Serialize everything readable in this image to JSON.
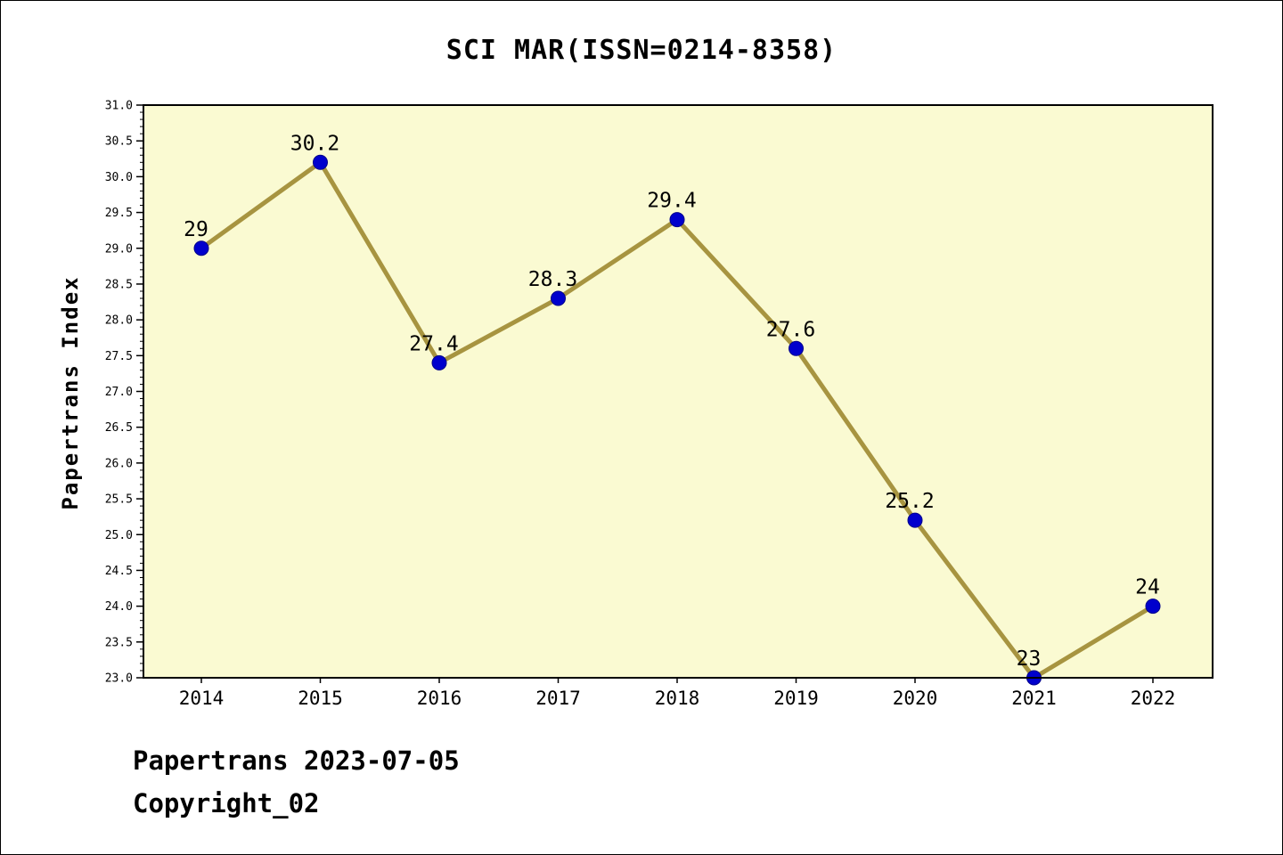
{
  "chart_data": {
    "type": "line",
    "title": "SCI MAR(ISSN=0214-8358)",
    "ylabel": "Papertrans Index",
    "xlabel": "",
    "x": [
      2014,
      2015,
      2016,
      2017,
      2018,
      2019,
      2020,
      2021,
      2022
    ],
    "values": [
      29,
      30.2,
      27.4,
      28.3,
      29.4,
      27.6,
      25.2,
      23,
      24
    ],
    "point_labels": [
      "29",
      "30.2",
      "27.4",
      "28.3",
      "29.4",
      "27.6",
      "25.2",
      "23",
      "24"
    ],
    "xticks": [
      "2014",
      "2015",
      "2016",
      "2017",
      "2018",
      "2019",
      "2020",
      "2021",
      "2022"
    ],
    "yticks": [
      "23.0",
      "23.5",
      "24.0",
      "24.5",
      "25.0",
      "25.5",
      "26.0",
      "26.5",
      "27.0",
      "27.5",
      "28.0",
      "28.5",
      "29.0",
      "29.5",
      "30.0",
      "30.5",
      "31.0"
    ],
    "ylim": [
      23.0,
      31.0
    ],
    "ytick_step": 0.5,
    "ytick_minor_step": 0.1,
    "grid": false,
    "legend": "none",
    "plot_bg_color": "#FAFAD2",
    "line_color": "#A79440",
    "marker_color": "#0000CD",
    "marker_edge_color": "#00008B",
    "axis_color": "#000000"
  },
  "footer": {
    "line1": "Papertrans 2023-07-05",
    "line2": "Copyright_02"
  }
}
